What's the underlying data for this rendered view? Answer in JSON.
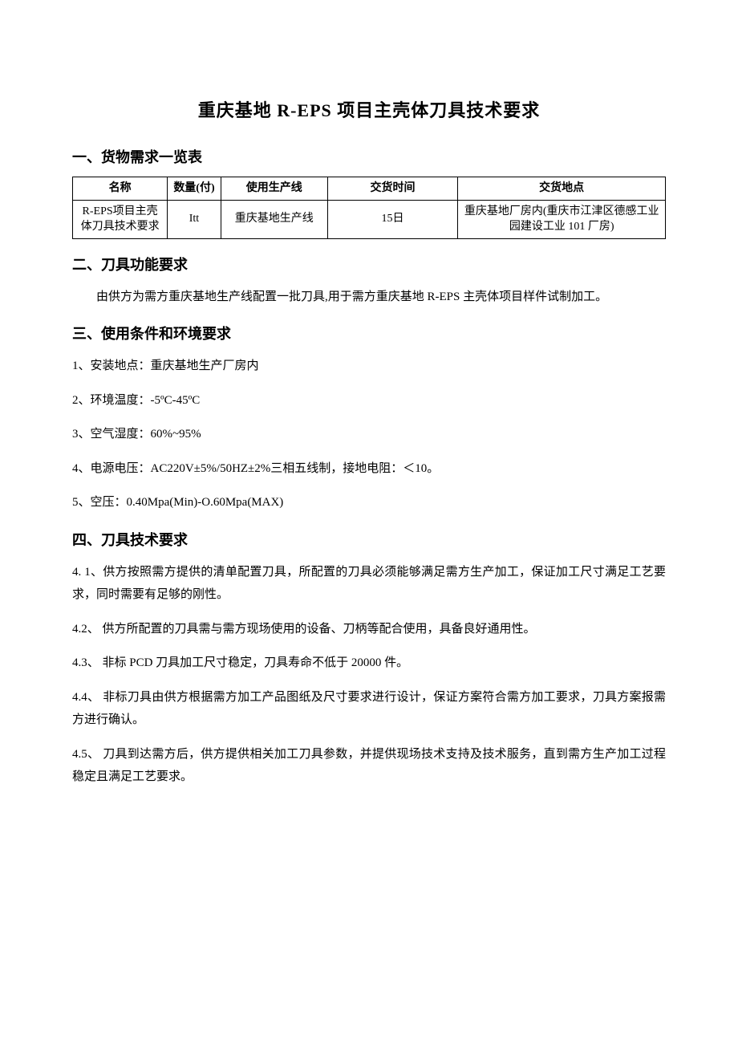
{
  "title": "重庆基地 R-EPS 项目主壳体刀具技术要求",
  "s1": {
    "heading": "一、货物需求一览表",
    "columns": [
      "名称",
      "数量(付)",
      "使用生产线",
      "交货时间",
      "交货地点"
    ],
    "row": {
      "name": "R-EPS项目主壳体刀具技术要求",
      "qty": "Itt",
      "line": "重庆基地生产线",
      "time": "15日",
      "loc": "重庆基地厂房内(重庆市江津区德感工业园建设工业 101 厂房)"
    }
  },
  "s2": {
    "heading": "二、刀具功能要求",
    "body": "由供方为需方重庆基地生产线配置一批刀具,用于需方重庆基地 R-EPS 主壳体项目样件试制加工。"
  },
  "s3": {
    "heading": "三、使用条件和环境要求",
    "items": [
      "1、安装地点：重庆基地生产厂房内",
      "2、环境温度：-5ºC-45ºC",
      "3、空气湿度：60%~95%",
      "4、电源电压：AC220V±5%/50HZ±2%三相五线制，接地电阻：＜10。",
      "5、空压：0.40Mpa(Min)-O.60Mpa(MAX)"
    ]
  },
  "s4": {
    "heading": "四、刀具技术要求",
    "items": [
      "4. 1、供方按照需方提供的清单配置刀具，所配置的刀具必须能够满足需方生产加工，保证加工尺寸满足工艺要求，同时需要有足够的刚性。",
      "4.2、 供方所配置的刀具需与需方现场使用的设备、刀柄等配合使用，具备良好通用性。",
      "4.3、 非标 PCD 刀具加工尺寸稳定，刀具寿命不低于 20000 件。",
      "4.4、 非标刀具由供方根据需方加工产品图纸及尺寸要求进行设计，保证方案符合需方加工要求，刀具方案报需方进行确认。",
      "4.5、 刀具到达需方后，供方提供相关加工刀具参数，并提供现场技术支持及技术服务，直到需方生产加工过程稳定且满足工艺要求。"
    ]
  }
}
